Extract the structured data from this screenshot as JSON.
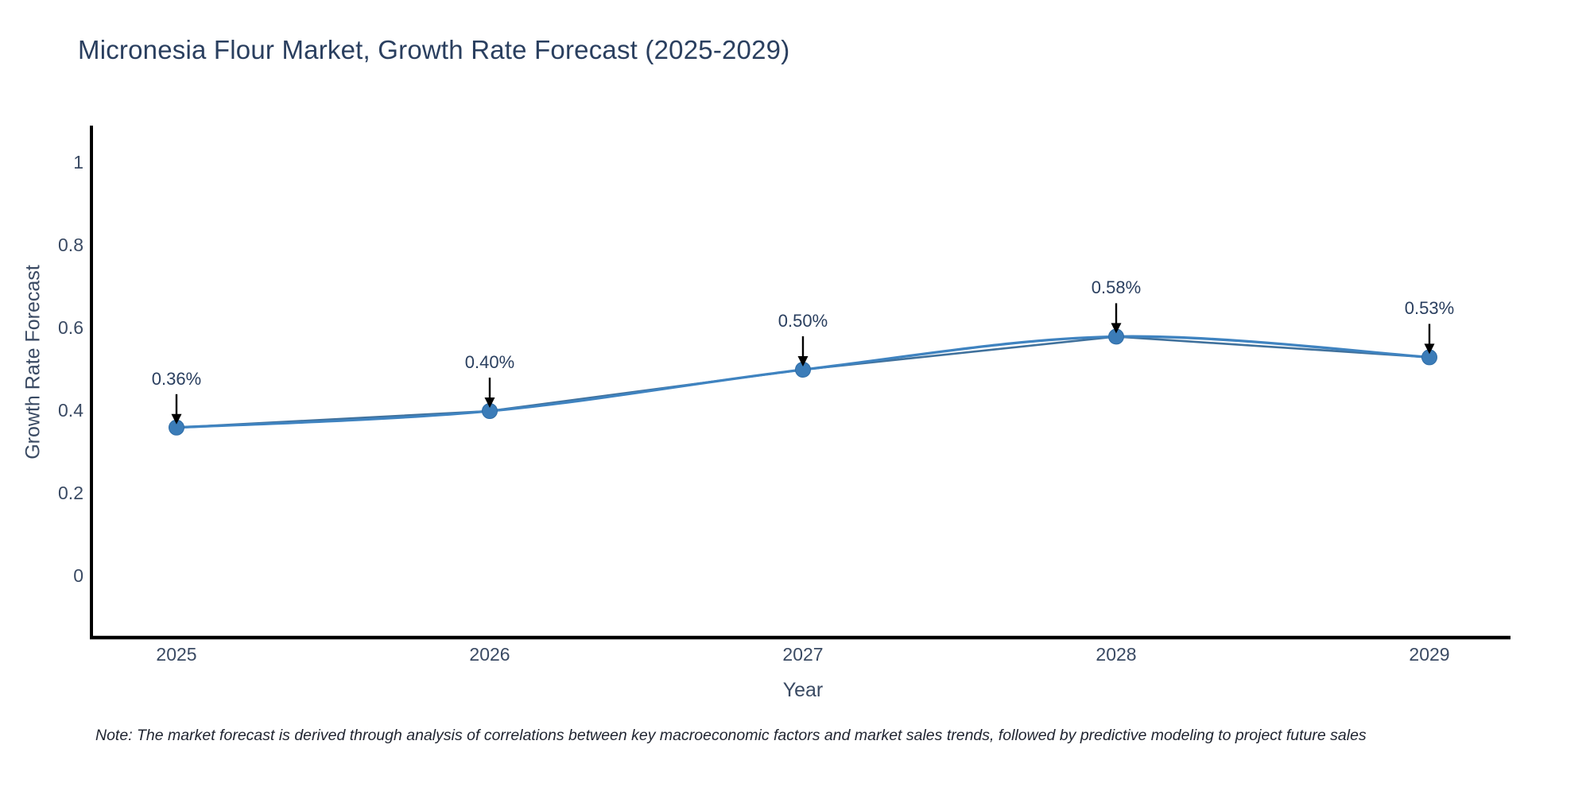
{
  "title": "Micronesia Flour Market, Growth Rate Forecast (2025-2029)",
  "note": "Note: The market forecast is derived through analysis of correlations between key macroeconomic factors and market sales trends, followed by predictive modeling to project future sales",
  "chart_data": {
    "type": "line",
    "title": "Micronesia Flour Market, Growth Rate Forecast (2025-2029)",
    "xlabel": "Year",
    "ylabel": "Growth Rate Forecast",
    "x": [
      2025,
      2026,
      2027,
      2028,
      2029
    ],
    "values": [
      0.36,
      0.4,
      0.5,
      0.58,
      0.53
    ],
    "point_labels": [
      "0.36%",
      "0.40%",
      "0.50%",
      "0.58%",
      "0.53%"
    ],
    "x_ticks": [
      "2025",
      "2026",
      "2027",
      "2028",
      "2029"
    ],
    "y_ticks": [
      "1",
      "0.8",
      "0.6",
      "0.4",
      "0.2",
      "0"
    ],
    "y_tick_values": [
      1,
      0.8,
      0.6,
      0.4,
      0.2,
      0
    ],
    "ylim": [
      -0.15,
      1.1
    ],
    "line_shape": "spline",
    "grid": false,
    "legend_position": "none",
    "colors": {
      "spline_line": "#3f83c0",
      "chord_line": "#40719c",
      "marker_fill": "#3b7cb8",
      "marker_stroke": "#2e6ca6",
      "axis": "#000000",
      "arrow": "#000000",
      "text": "#2a3f5f"
    }
  }
}
